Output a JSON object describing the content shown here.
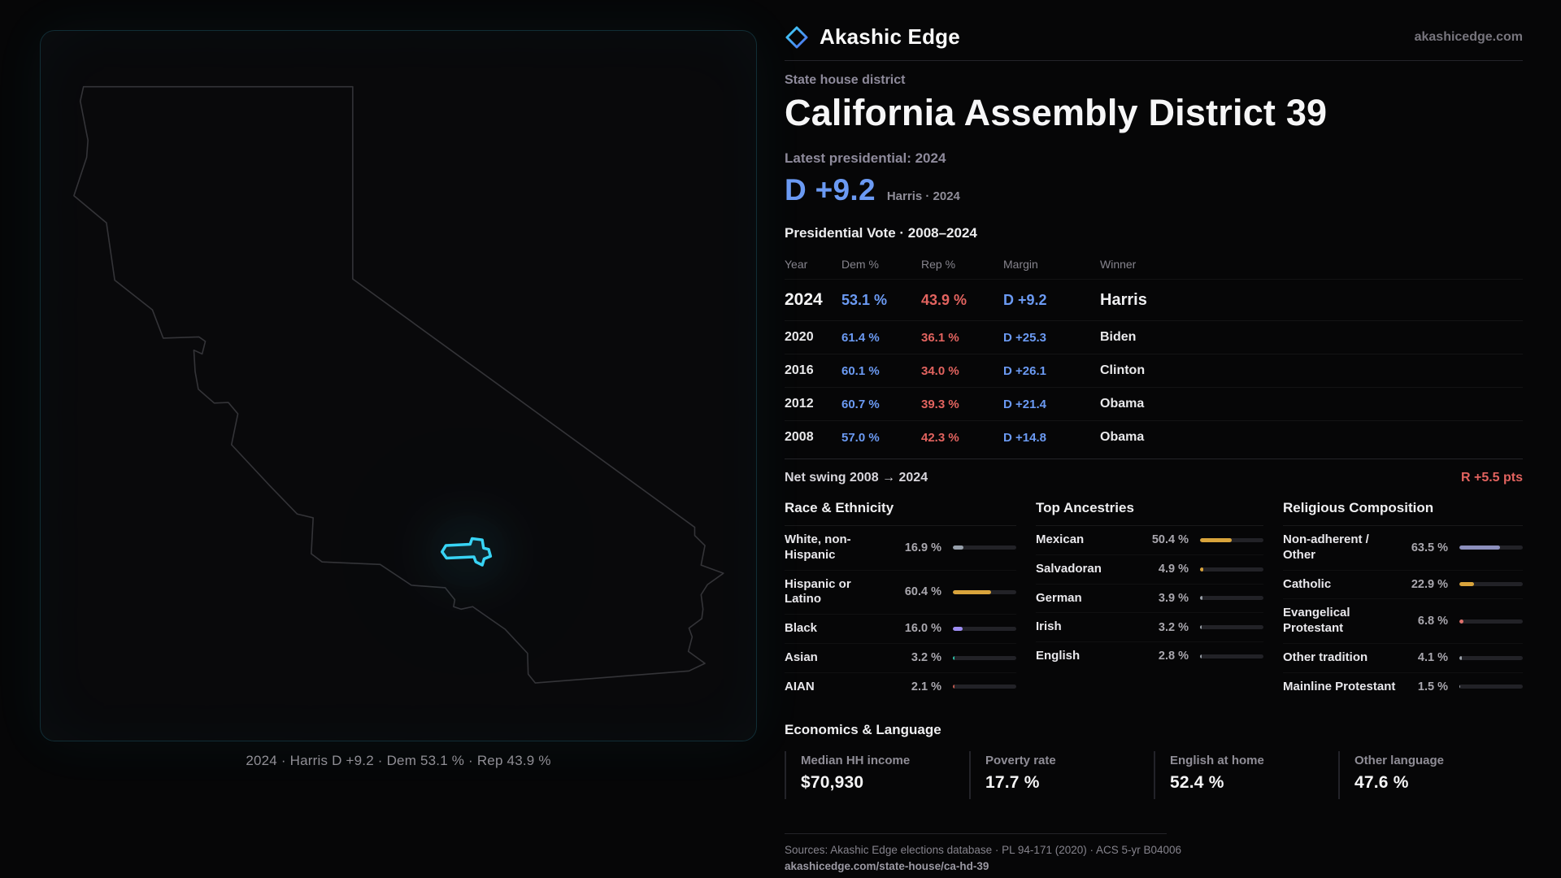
{
  "theme": {
    "bg": "#060607",
    "panel": "#09090b",
    "accent": "#38d4f5",
    "dem": "#6b9af3",
    "rep": "#e2635f",
    "text": "#f2f2f3",
    "muted": "#8f8d98",
    "line": "#242429"
  },
  "brand": {
    "name": "Akashic Edge",
    "domain": "akashicedge.com"
  },
  "map": {
    "caption": "2024 · Harris D +9.2 · Dem 53.1 % · Rep 43.9 %",
    "district_color": "#38d4f5"
  },
  "hero": {
    "kicker": "State house district",
    "title": "California Assembly District 39",
    "latest": "Latest presidential: 2024",
    "margin": "D +9.2",
    "margin_note": "Harris · 2024"
  },
  "vote": {
    "title": "Presidential Vote · 2008–2024",
    "columns": [
      "Year",
      "Dem %",
      "Rep %",
      "Margin",
      "Winner"
    ],
    "rows": [
      {
        "year": "2024",
        "dem": "53.1 %",
        "rep": "43.9 %",
        "margin": "D +9.2",
        "winner": "Harris"
      },
      {
        "year": "2020",
        "dem": "61.4 %",
        "rep": "36.1 %",
        "margin": "D +25.3",
        "winner": "Biden"
      },
      {
        "year": "2016",
        "dem": "60.1 %",
        "rep": "34.0 %",
        "margin": "D +26.1",
        "winner": "Clinton"
      },
      {
        "year": "2012",
        "dem": "60.7 %",
        "rep": "39.3 %",
        "margin": "D +21.4",
        "winner": "Obama"
      },
      {
        "year": "2008",
        "dem": "57.0 %",
        "rep": "42.3 %",
        "margin": "D +14.8",
        "winner": "Obama"
      }
    ],
    "swing_label": "Net swing 2008 → 2024",
    "swing_value": "R +5.5 pts"
  },
  "demographics": {
    "race": {
      "title": "Race & Ethnicity",
      "items": [
        {
          "label": "White, non-Hispanic",
          "value": "16.9 %",
          "pct": 16.9,
          "color": "#97a0ab"
        },
        {
          "label": "Hispanic or Latino",
          "value": "60.4 %",
          "pct": 60.4,
          "color": "#d9a43c"
        },
        {
          "label": "Black",
          "value": "16.0 %",
          "pct": 16.0,
          "color": "#9d8df2"
        },
        {
          "label": "Asian",
          "value": "3.2 %",
          "pct": 3.2,
          "color": "#2dbfa6"
        },
        {
          "label": "AIAN",
          "value": "2.1 %",
          "pct": 2.1,
          "color": "#c05a4e"
        }
      ]
    },
    "ancestries": {
      "title": "Top Ancestries",
      "items": [
        {
          "label": "Mexican",
          "value": "50.4 %",
          "pct": 50.4,
          "color": "#d9a43c"
        },
        {
          "label": "Salvadoran",
          "value": "4.9 %",
          "pct": 4.9,
          "color": "#d9a43c"
        },
        {
          "label": "German",
          "value": "3.9 %",
          "pct": 3.9,
          "color": "#9aa0a8"
        },
        {
          "label": "Irish",
          "value": "3.2 %",
          "pct": 3.2,
          "color": "#9aa0a8"
        },
        {
          "label": "English",
          "value": "2.8 %",
          "pct": 2.8,
          "color": "#9aa0a8"
        }
      ]
    },
    "religion": {
      "title": "Religious Composition",
      "items": [
        {
          "label": "Non-adherent / Other",
          "value": "63.5 %",
          "pct": 63.5,
          "color": "#8d90bd"
        },
        {
          "label": "Catholic",
          "value": "22.9 %",
          "pct": 22.9,
          "color": "#d9a43c"
        },
        {
          "label": "Evangelical Protestant",
          "value": "6.8 %",
          "pct": 6.8,
          "color": "#e0716c"
        },
        {
          "label": "Other tradition",
          "value": "4.1 %",
          "pct": 4.1,
          "color": "#9aa0a8"
        },
        {
          "label": "Mainline Protestant",
          "value": "1.5 %",
          "pct": 1.5,
          "color": "#9aa0a8"
        }
      ]
    }
  },
  "economics": {
    "title": "Economics & Language",
    "stats": [
      {
        "label": "Median HH income",
        "value": "$70,930"
      },
      {
        "label": "Poverty rate",
        "value": "17.7 %"
      },
      {
        "label": "English at home",
        "value": "52.4 %"
      },
      {
        "label": "Other language",
        "value": "47.6 %"
      }
    ]
  },
  "footer": {
    "sources": "Sources: Akashic Edge elections database · PL 94-171 (2020) · ACS 5-yr B04006",
    "link": "akashicedge.com/state-house/ca-hd-39"
  },
  "chart_data": [
    {
      "type": "table",
      "title": "Presidential Vote · 2008–2024",
      "columns": [
        "Year",
        "Dem %",
        "Rep %",
        "Margin",
        "Winner"
      ],
      "rows": [
        [
          "2024",
          "53.1 %",
          "43.9 %",
          "D +9.2",
          "Harris"
        ],
        [
          "2020",
          "61.4 %",
          "36.1 %",
          "D +25.3",
          "Biden"
        ],
        [
          "2016",
          "60.1 %",
          "34.0 %",
          "D +26.1",
          "Clinton"
        ],
        [
          "2012",
          "60.7 %",
          "39.3 %",
          "D +21.4",
          "Obama"
        ],
        [
          "2008",
          "57.0 %",
          "42.3 %",
          "D +14.8",
          "Obama"
        ]
      ],
      "note": "Net swing 2008 → 2024: R +5.5 pts"
    },
    {
      "type": "bar",
      "title": "Race & Ethnicity",
      "unit": "%",
      "categories": [
        "White, non-Hispanic",
        "Hispanic or Latino",
        "Black",
        "Asian",
        "AIAN"
      ],
      "values": [
        16.9,
        60.4,
        16.0,
        3.2,
        2.1
      ],
      "xlim": [
        0,
        100
      ]
    },
    {
      "type": "bar",
      "title": "Top Ancestries",
      "unit": "%",
      "categories": [
        "Mexican",
        "Salvadoran",
        "German",
        "Irish",
        "English"
      ],
      "values": [
        50.4,
        4.9,
        3.9,
        3.2,
        2.8
      ],
      "xlim": [
        0,
        100
      ]
    },
    {
      "type": "bar",
      "title": "Religious Composition",
      "unit": "%",
      "categories": [
        "Non-adherent / Other",
        "Catholic",
        "Evangelical Protestant",
        "Other tradition",
        "Mainline Protestant"
      ],
      "values": [
        63.5,
        22.9,
        6.8,
        4.1,
        1.5
      ],
      "xlim": [
        0,
        100
      ]
    },
    {
      "type": "table",
      "title": "Economics & Language",
      "columns": [
        "Median HH income",
        "Poverty rate",
        "English at home",
        "Other language"
      ],
      "rows": [
        [
          "$70,930",
          "17.7 %",
          "52.4 %",
          "47.6 %"
        ]
      ]
    }
  ]
}
